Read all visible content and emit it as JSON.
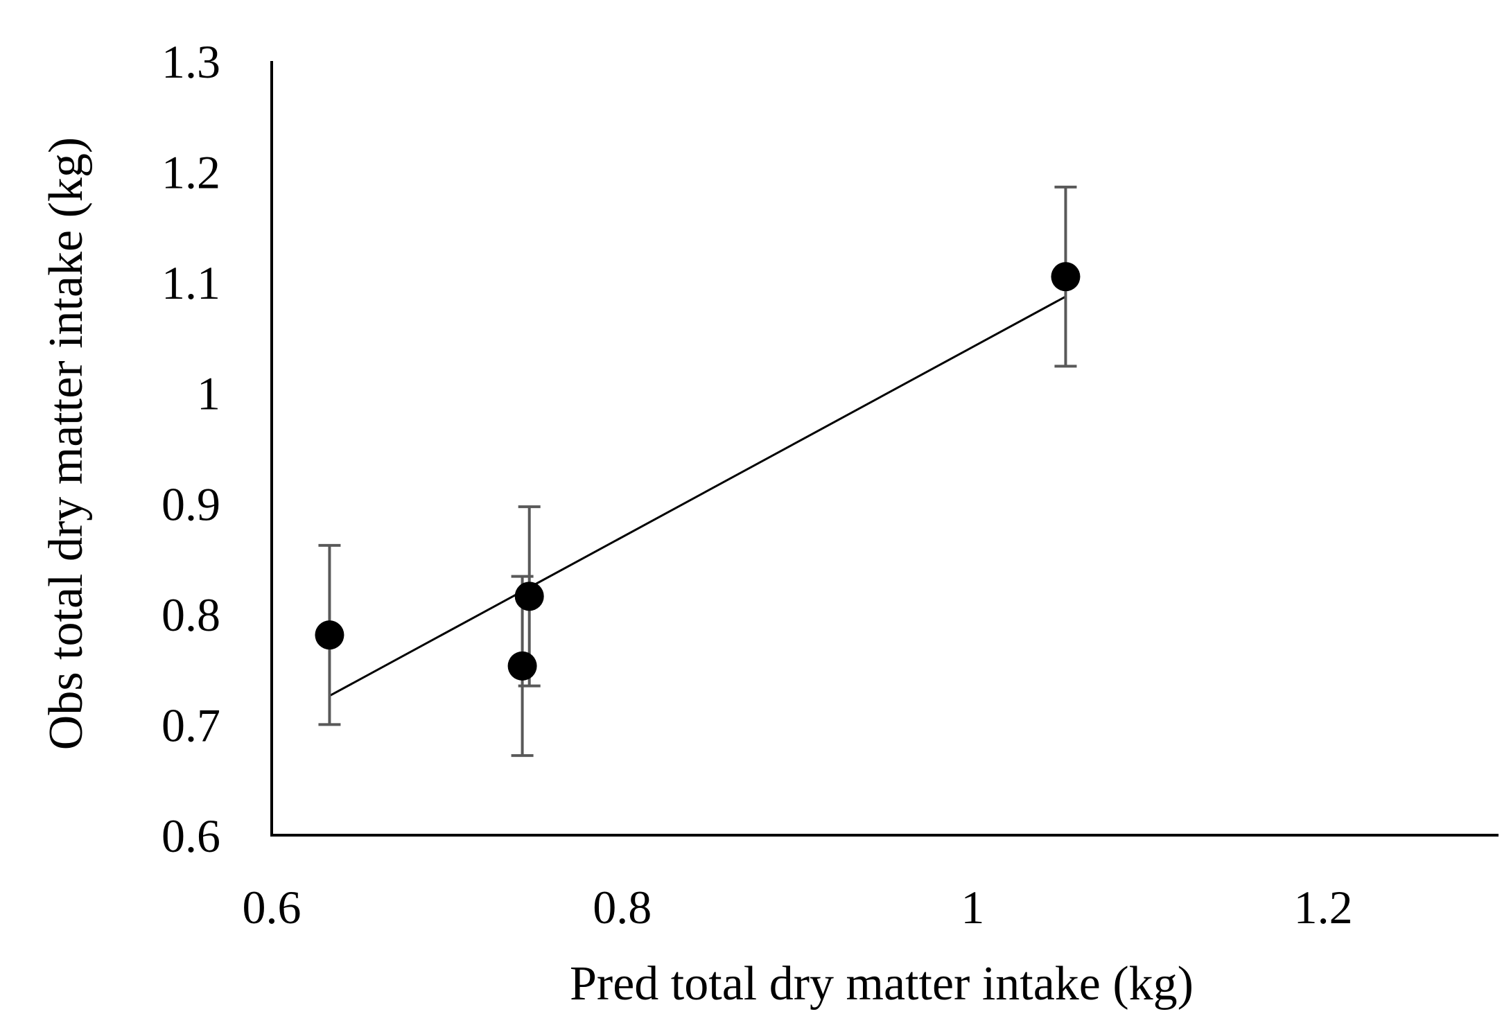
{
  "chart_data": {
    "type": "scatter",
    "title": "",
    "xlabel": "Pred total dry matter intake (kg)",
    "ylabel": "Obs total dry matter intake (kg)",
    "xlim": [
      0.6,
      1.3
    ],
    "ylim": [
      0.6,
      1.3
    ],
    "x_ticks": [
      0.6,
      0.8,
      1.0,
      1.2
    ],
    "x_tick_labels": [
      "0.6",
      "0.8",
      "1",
      "1.2"
    ],
    "y_ticks": [
      0.6,
      0.7,
      0.8,
      0.9,
      1.0,
      1.1,
      1.2,
      1.3
    ],
    "y_tick_labels": [
      "0.6",
      "0.7",
      "0.8",
      "0.9",
      "1",
      "1.1",
      "1.2",
      "1.3"
    ],
    "grid": false,
    "points": [
      {
        "x": 0.633,
        "y": 0.781,
        "err": 0.081
      },
      {
        "x": 0.743,
        "y": 0.753,
        "err": 0.081
      },
      {
        "x": 0.747,
        "y": 0.816,
        "err": 0.081
      },
      {
        "x": 1.053,
        "y": 1.105,
        "err": 0.081
      }
    ],
    "trendline": {
      "x1": 0.633,
      "y1": 0.726,
      "x2": 1.053,
      "y2": 1.087
    },
    "colors": {
      "marker": "#000000",
      "error_bar": "#595959",
      "axis": "#000000",
      "trendline": "#000000"
    }
  }
}
